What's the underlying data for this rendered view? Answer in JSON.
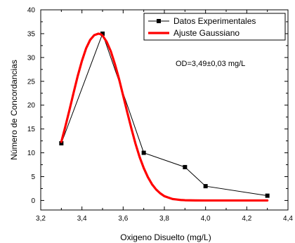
{
  "chart_data": {
    "type": "scatter",
    "xlabel": "Oxigeno Disuelto (mg/L)",
    "ylabel": "Número de Concordancias",
    "xlim": [
      3.2,
      4.4
    ],
    "ylim": [
      -2,
      40
    ],
    "x_ticks": [
      "3,2",
      "3,4",
      "3,6",
      "3,8",
      "4,0",
      "4,2",
      "4,4"
    ],
    "y_ticks": [
      "0",
      "5",
      "10",
      "15",
      "20",
      "25",
      "30",
      "35",
      "40"
    ],
    "grid": false,
    "legend_position": "top-right",
    "annotation": "OD=3,49±0,03 mg/L",
    "series": [
      {
        "name": "Datos Experimentales",
        "style": "line-with-square-markers",
        "color": "#000000",
        "x": [
          3.3,
          3.5,
          3.7,
          3.9,
          4.0,
          4.3
        ],
        "y": [
          12,
          35,
          10,
          7,
          3,
          1
        ]
      },
      {
        "name": "Ajuste Gaussiano",
        "style": "smooth-line",
        "color": "#ff0000",
        "x": [
          3.3,
          3.32,
          3.34,
          3.36,
          3.38,
          3.4,
          3.42,
          3.44,
          3.46,
          3.48,
          3.49,
          3.5,
          3.52,
          3.54,
          3.56,
          3.58,
          3.6,
          3.62,
          3.64,
          3.66,
          3.68,
          3.7,
          3.72,
          3.74,
          3.76,
          3.78,
          3.8,
          3.82,
          3.84,
          3.86,
          3.88,
          3.9,
          3.95,
          4.0,
          4.1,
          4.2,
          4.3
        ],
        "y": [
          12.3,
          15.6,
          19.1,
          22.7,
          26.2,
          29.3,
          31.9,
          33.7,
          34.7,
          35.0,
          34.9,
          34.6,
          33.3,
          31.3,
          28.6,
          25.5,
          22.0,
          18.5,
          15.1,
          11.9,
          9.1,
          6.8,
          4.9,
          3.4,
          2.3,
          1.5,
          0.9,
          0.6,
          0.3,
          0.2,
          0.1,
          0.05,
          0.01,
          0.0,
          0.0,
          0.0,
          0.0
        ]
      }
    ]
  }
}
